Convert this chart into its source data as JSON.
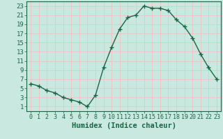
{
  "x": [
    0,
    1,
    2,
    3,
    4,
    5,
    6,
    7,
    8,
    9,
    10,
    11,
    12,
    13,
    14,
    15,
    16,
    17,
    18,
    19,
    20,
    21,
    22,
    23
  ],
  "y": [
    6,
    5.5,
    4.5,
    4,
    3,
    2.5,
    2,
    1,
    3.5,
    9.5,
    14,
    18,
    20.5,
    21,
    23,
    22.5,
    22.5,
    22,
    20,
    18.5,
    16,
    12.5,
    9.5,
    7
  ],
  "line_color": "#1a6644",
  "marker": "+",
  "marker_size": 5,
  "bg_color": "#c8e8e0",
  "grid_color": "#e8c8c8",
  "xlabel": "Humidex (Indice chaleur)",
  "xlabel_fontsize": 7.5,
  "xlabel_color": "#1a6644",
  "tick_color": "#1a6644",
  "xlim": [
    -0.5,
    23.5
  ],
  "ylim": [
    0,
    24
  ],
  "yticks": [
    1,
    3,
    5,
    7,
    9,
    11,
    13,
    15,
    17,
    19,
    21,
    23
  ],
  "xticks": [
    0,
    1,
    2,
    3,
    4,
    5,
    6,
    7,
    8,
    9,
    10,
    11,
    12,
    13,
    14,
    15,
    16,
    17,
    18,
    19,
    20,
    21,
    22,
    23
  ]
}
